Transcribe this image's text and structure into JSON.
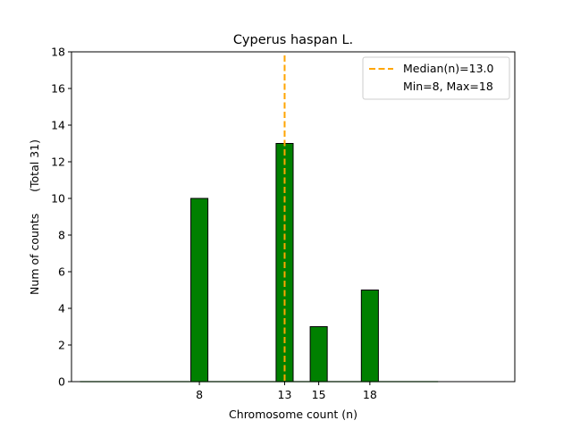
{
  "chart_data": {
    "type": "bar",
    "title": "Cyperus haspan L.",
    "xlabel": "Chromosome count (n)",
    "ylabel": "Num of counts      (Total 31)",
    "categories": [
      8,
      13,
      15,
      18
    ],
    "values": [
      10,
      13,
      3,
      5
    ],
    "xlim": [
      0.5,
      26.5
    ],
    "ylim": [
      0,
      18
    ],
    "yticks": [
      0,
      2,
      4,
      6,
      8,
      10,
      12,
      14,
      16,
      18
    ],
    "xticks": [
      8,
      13,
      15,
      18
    ],
    "bar_color": "#008000",
    "median": 13.0,
    "median_color": "#FFA500",
    "legend": {
      "placement": "top-right",
      "entries": [
        "Median(n)=13.0",
        "Min=8, Max=18"
      ]
    }
  }
}
